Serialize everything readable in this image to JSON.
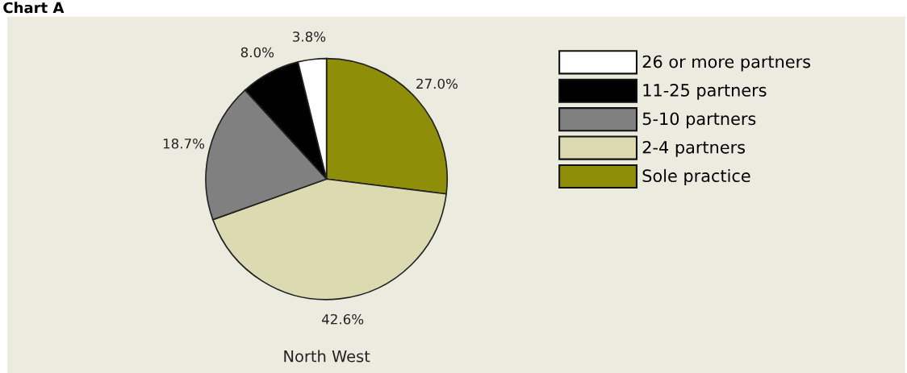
{
  "chart_data": {
    "type": "pie",
    "title": "Chart A",
    "subtitle": "North West",
    "categories": [
      "Sole practice",
      "2-4 partners",
      "5-10 partners",
      "11-25 partners",
      "26 or more partners"
    ],
    "values": [
      27.0,
      42.6,
      18.7,
      8.0,
      3.8
    ],
    "colors": [
      "#8f8e08",
      "#dcdab0",
      "#808080",
      "#000000",
      "#ffffff"
    ],
    "value_labels": [
      "27.0%",
      "42.6%",
      "18.7%",
      "8.0%",
      "3.8%"
    ],
    "legend": "right"
  }
}
